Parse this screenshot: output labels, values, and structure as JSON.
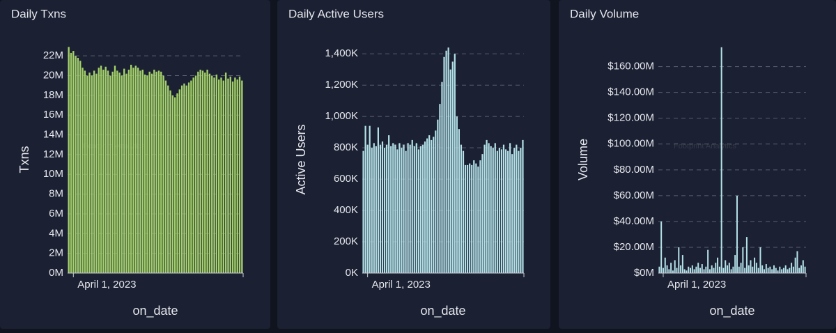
{
  "chart_data": [
    {
      "type": "bar",
      "title": "Daily Txns",
      "x_label": "on_date",
      "y_label": "Txns",
      "watermark": "Footprint Analytics",
      "color": "#a4d16a",
      "categories": [
        null,
        null,
        "April 1, 2023",
        null,
        null,
        null,
        null,
        null,
        null,
        null,
        null,
        null,
        null,
        null,
        null,
        null,
        null,
        null,
        null,
        null,
        null,
        null,
        null,
        null,
        null,
        null,
        null,
        null,
        null,
        null,
        null,
        null,
        null,
        null,
        null,
        null,
        null,
        null,
        null,
        null,
        null,
        null,
        null,
        null,
        null,
        null,
        null,
        null,
        null,
        null,
        null,
        null,
        null,
        null,
        null,
        null,
        null,
        null,
        null,
        null,
        null,
        null,
        null,
        null,
        null,
        null,
        null,
        null,
        null,
        null,
        null,
        null,
        null,
        null,
        null,
        null
      ],
      "values": [
        22.9,
        22.3,
        22.5,
        22.0,
        21.8,
        21.5,
        20.8,
        20.5,
        20.0,
        20.3,
        20.0,
        20.5,
        20.2,
        20.8,
        21.0,
        20.6,
        20.9,
        20.5,
        20.0,
        20.4,
        21.0,
        20.5,
        20.3,
        20.0,
        20.7,
        20.2,
        20.6,
        21.1,
        20.8,
        21.0,
        20.8,
        20.5,
        20.6,
        20.1,
        20.0,
        20.4,
        20.2,
        20.6,
        20.4,
        20.5,
        20.4,
        20.0,
        19.5,
        19.0,
        18.5,
        18.0,
        17.8,
        18.2,
        18.6,
        19.0,
        19.2,
        19.0,
        19.3,
        19.5,
        19.8,
        20.0,
        20.4,
        20.6,
        20.5,
        20.3,
        20.6,
        20.2,
        20.0,
        19.8,
        20.1,
        19.6,
        19.8,
        19.5,
        20.3,
        19.7,
        19.9,
        19.4,
        19.8,
        19.6,
        19.9,
        19.5
      ],
      "ylim": [
        0,
        23
      ],
      "yticks": [
        {
          "value": 0,
          "label": "0M"
        },
        {
          "value": 2,
          "label": "2M"
        },
        {
          "value": 4,
          "label": "4M"
        },
        {
          "value": 6,
          "label": "6M"
        },
        {
          "value": 8,
          "label": "8M"
        },
        {
          "value": 10,
          "label": "10M"
        },
        {
          "value": 12,
          "label": "12M"
        },
        {
          "value": 14,
          "label": "14M"
        },
        {
          "value": 16,
          "label": "16M"
        },
        {
          "value": 18,
          "label": "18M"
        },
        {
          "value": 20,
          "label": "20M"
        },
        {
          "value": 22,
          "label": "22M"
        }
      ],
      "grid": true
    },
    {
      "type": "bar",
      "title": "Daily Active Users",
      "x_label": "on_date",
      "y_label": "Active Users",
      "watermark": "Footprint Analytics",
      "color": "#b4e1e8",
      "categories": [
        null,
        null,
        "April 1, 2023",
        null,
        null,
        null,
        null,
        null,
        null,
        null,
        null,
        null,
        null,
        null,
        null,
        null,
        null,
        null,
        null,
        null,
        null,
        null,
        null,
        null,
        null,
        null,
        null,
        null,
        null,
        null,
        null,
        null,
        null,
        null,
        null,
        null,
        null,
        null,
        null,
        null,
        null,
        null,
        null,
        null,
        null,
        null,
        null,
        null,
        null,
        null,
        null,
        null,
        null,
        null,
        null,
        null,
        null,
        null,
        null,
        null,
        null,
        null,
        null,
        null,
        null,
        null,
        null,
        null,
        null,
        null,
        null,
        null,
        null,
        null,
        null,
        null
      ],
      "values": [
        780,
        940,
        820,
        940,
        800,
        830,
        810,
        930,
        820,
        840,
        800,
        820,
        880,
        810,
        830,
        820,
        790,
        830,
        800,
        820,
        780,
        830,
        820,
        850,
        810,
        830,
        790,
        810,
        820,
        840,
        860,
        880,
        850,
        870,
        910,
        980,
        1080,
        1220,
        1380,
        1420,
        1440,
        1300,
        1350,
        1400,
        1000,
        920,
        820,
        780,
        690,
        690,
        700,
        690,
        720,
        700,
        680,
        720,
        760,
        820,
        850,
        830,
        810,
        800,
        830,
        780,
        800,
        790,
        820,
        790,
        780,
        830,
        760,
        800,
        820,
        780,
        800,
        850
      ],
      "ylim": [
        0,
        1450
      ],
      "yticks": [
        {
          "value": 0,
          "label": "0K"
        },
        {
          "value": 200,
          "label": "200K"
        },
        {
          "value": 400,
          "label": "400K"
        },
        {
          "value": 600,
          "label": "600K"
        },
        {
          "value": 800,
          "label": "800K"
        },
        {
          "value": 1000,
          "label": "1,000K"
        },
        {
          "value": 1200,
          "label": "1,200K"
        },
        {
          "value": 1400,
          "label": "1,400K"
        }
      ],
      "grid": true
    },
    {
      "type": "bar",
      "title": "Daily Volume",
      "x_label": "on_date",
      "y_label": "Volume",
      "watermark": "Footprint Analytics",
      "color": "#b4e1e8",
      "categories": [
        null,
        null,
        "April 1, 2023",
        null,
        null,
        null,
        null,
        null,
        null,
        null,
        null,
        null,
        null,
        null,
        null,
        null,
        null,
        null,
        null,
        null,
        null,
        null,
        null,
        null,
        null,
        null,
        null,
        null,
        null,
        null,
        null,
        null,
        null,
        null,
        null,
        null,
        null,
        null,
        null,
        null,
        null,
        null,
        null,
        null,
        null,
        null,
        null,
        null,
        null,
        null,
        null,
        null,
        null,
        null,
        null,
        null,
        null,
        null,
        null,
        null,
        null,
        null,
        null,
        null,
        null,
        null,
        null,
        null,
        null,
        null,
        null,
        null,
        null,
        null,
        null,
        null
      ],
      "values": [
        5,
        40,
        4,
        12,
        6,
        3,
        8,
        2,
        10,
        4,
        20,
        6,
        14,
        3,
        2,
        5,
        4,
        6,
        3,
        5,
        8,
        4,
        7,
        3,
        5,
        18,
        3,
        6,
        4,
        8,
        12,
        5,
        175,
        4,
        10,
        6,
        8,
        3,
        5,
        14,
        60,
        5,
        8,
        20,
        4,
        28,
        6,
        10,
        5,
        12,
        8,
        4,
        20,
        6,
        3,
        7,
        4,
        5,
        3,
        6,
        4,
        2,
        5,
        3,
        4,
        6,
        3,
        4,
        8,
        5,
        12,
        17,
        4,
        6,
        10,
        5
      ],
      "ylim": [
        0,
        176
      ],
      "yticks": [
        {
          "value": 0,
          "label": "$0M"
        },
        {
          "value": 20,
          "label": "$20.00M"
        },
        {
          "value": 40,
          "label": "$40.00M"
        },
        {
          "value": 60,
          "label": "$60.00M"
        },
        {
          "value": 80,
          "label": "$80.00M"
        },
        {
          "value": 100,
          "label": "$100.00M"
        },
        {
          "value": 120,
          "label": "$120.00M"
        },
        {
          "value": 140,
          "label": "$140.00M"
        },
        {
          "value": 160,
          "label": "$160.00M"
        }
      ],
      "grid": true
    }
  ]
}
